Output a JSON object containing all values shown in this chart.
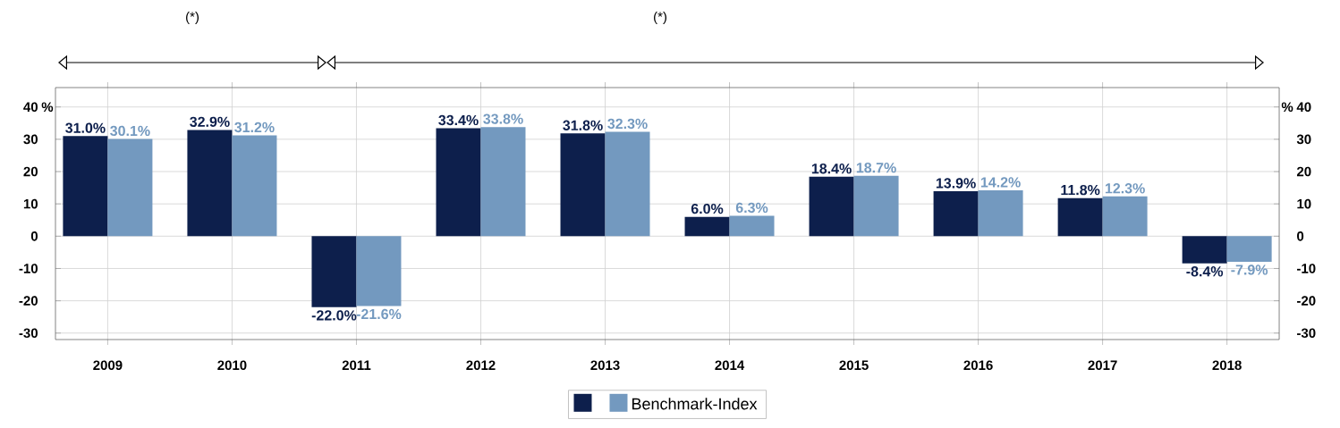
{
  "chart_data": {
    "type": "bar",
    "categories": [
      "2009",
      "2010",
      "2011",
      "2012",
      "2013",
      "2014",
      "2015",
      "2016",
      "2017",
      "2018"
    ],
    "series": [
      {
        "color": "#0d1f4c",
        "values": [
          31.0,
          32.9,
          -22.0,
          33.4,
          31.8,
          6.0,
          18.4,
          13.9,
          11.8,
          -8.4
        ],
        "value_labels": [
          "31.0%",
          "32.9%",
          "-22.0%",
          "33.4%",
          "31.8%",
          "6.0%",
          "18.4%",
          "13.9%",
          "11.8%",
          "-8.4%"
        ]
      },
      {
        "name": "Benchmark-Index",
        "color": "#7399bf",
        "values": [
          30.1,
          31.2,
          -21.6,
          33.8,
          32.3,
          6.3,
          18.7,
          14.2,
          12.3,
          -7.9
        ],
        "value_labels": [
          "30.1%",
          "31.2%",
          "-21.6%",
          "33.8%",
          "32.3%",
          "6.3%",
          "18.7%",
          "14.2%",
          "12.3%",
          "-7.9%"
        ]
      }
    ],
    "ylabel": "%",
    "y2label": "%",
    "ylim": [
      -32,
      46
    ],
    "yticks": [
      -30,
      -20,
      -10,
      0,
      10,
      20,
      30,
      40
    ],
    "y2lim": [
      -32,
      46
    ],
    "y2ticks": [
      -30,
      -20,
      -10,
      0,
      10,
      20,
      30,
      40
    ],
    "annotations": [
      "(*)",
      "(*)"
    ],
    "grid": true,
    "legend": "bottom"
  }
}
